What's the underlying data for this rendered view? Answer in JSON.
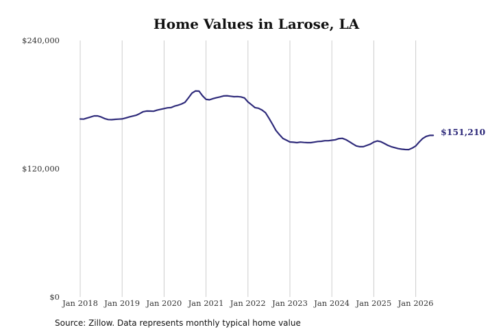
{
  "chart_data": {
    "type": "line",
    "title": "Home Values in Larose, LA",
    "ylim": [
      0,
      240000
    ],
    "yticks": [
      {
        "value": 0,
        "label": "$0"
      },
      {
        "value": 120000,
        "label": "$120,000"
      },
      {
        "value": 240000,
        "label": "$240,000"
      }
    ],
    "xticks": [
      {
        "x": 2018.0,
        "label": "Jan 2018"
      },
      {
        "x": 2019.0,
        "label": "Jan 2019"
      },
      {
        "x": 2020.0,
        "label": "Jan 2020"
      },
      {
        "x": 2021.0,
        "label": "Jan 2021"
      },
      {
        "x": 2022.0,
        "label": "Jan 2022"
      },
      {
        "x": 2023.0,
        "label": "Jan 2023"
      },
      {
        "x": 2024.0,
        "label": "Jan 2024"
      },
      {
        "x": 2025.0,
        "label": "Jan 2025"
      },
      {
        "x": 2026.0,
        "label": "Jan 2026"
      }
    ],
    "grid": "vertical",
    "line_color": "#2e2a7a",
    "series": [
      {
        "x": [
          2018.0,
          2018.083,
          2018.167,
          2018.25,
          2018.333,
          2018.417,
          2018.5,
          2018.583,
          2018.667,
          2018.75,
          2018.833,
          2018.917,
          2019.0,
          2019.083,
          2019.167,
          2019.25,
          2019.333,
          2019.417,
          2019.5,
          2019.583,
          2019.667,
          2019.75,
          2019.833,
          2019.917,
          2020.0,
          2020.083,
          2020.167,
          2020.25,
          2020.333,
          2020.417,
          2020.5,
          2020.583,
          2020.667,
          2020.75,
          2020.833,
          2020.917,
          2021.0,
          2021.083,
          2021.167,
          2021.25,
          2021.333,
          2021.417,
          2021.5,
          2021.583,
          2021.667,
          2021.75,
          2021.833,
          2021.917,
          2022.0,
          2022.083,
          2022.167,
          2022.25,
          2022.333,
          2022.417,
          2022.5,
          2022.583,
          2022.667,
          2022.75,
          2022.833,
          2022.917,
          2023.0,
          2023.083,
          2023.167,
          2023.25,
          2023.333,
          2023.417,
          2023.5,
          2023.583,
          2023.667,
          2023.75,
          2023.833,
          2023.917,
          2024.0,
          2024.083,
          2024.167,
          2024.25,
          2024.333,
          2024.417,
          2024.5,
          2024.583,
          2024.667,
          2024.75,
          2024.833,
          2024.917,
          2025.0,
          2025.083,
          2025.167,
          2025.25,
          2025.333,
          2025.417,
          2025.5,
          2025.583,
          2025.667,
          2025.75,
          2025.833,
          2025.917,
          2026.0,
          2026.083,
          2026.167,
          2026.25,
          2026.333,
          2026.417
        ],
        "values": [
          166500,
          166400,
          167400,
          168400,
          169400,
          169400,
          168400,
          166900,
          166000,
          165900,
          166200,
          166400,
          166600,
          167400,
          168400,
          169200,
          170000,
          171500,
          173300,
          174000,
          173900,
          173800,
          174800,
          175600,
          176300,
          177000,
          177200,
          178600,
          179400,
          180600,
          182200,
          186400,
          190800,
          192800,
          192600,
          188200,
          184900,
          184500,
          185600,
          186500,
          187200,
          188100,
          188300,
          187800,
          187400,
          187500,
          187200,
          186200,
          182500,
          179900,
          177200,
          176600,
          174900,
          172500,
          167300,
          161700,
          155800,
          151900,
          148300,
          146700,
          145000,
          144800,
          144400,
          144900,
          144600,
          144400,
          144400,
          144900,
          145500,
          145700,
          146200,
          146200,
          146600,
          147100,
          148200,
          148400,
          147200,
          145300,
          143200,
          141300,
          140600,
          140600,
          141800,
          143000,
          144900,
          146000,
          145300,
          143700,
          141900,
          140600,
          139700,
          138800,
          138300,
          138000,
          137900,
          139300,
          141300,
          145000,
          148300,
          150300,
          151210,
          151210
        ]
      }
    ],
    "end_label": "$151,210"
  },
  "footer": {
    "source": "Source: Zillow. Data represents monthly typical home value"
  }
}
